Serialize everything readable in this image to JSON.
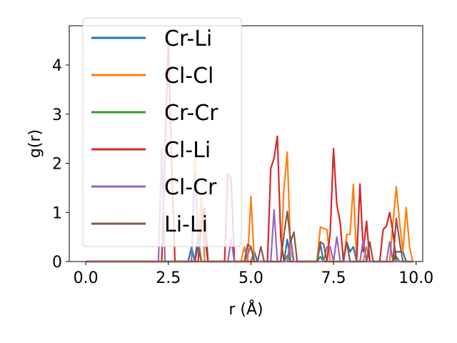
{
  "chart_data": {
    "type": "line",
    "xlabel": "r (Å)",
    "ylabel": "g(r)",
    "xlim": [
      -0.5,
      10.2
    ],
    "ylim": [
      0,
      4.8
    ],
    "xticks": [
      0.0,
      2.5,
      5.0,
      7.5,
      10.0
    ],
    "xtick_labels": [
      "0.0",
      "2.5",
      "5.0",
      "7.5",
      "10.0"
    ],
    "yticks": [
      0,
      1,
      2,
      3,
      4
    ],
    "ytick_labels": [
      "0",
      "1",
      "2",
      "3",
      "4"
    ],
    "legend_position": "top-left",
    "grid": false,
    "series": [
      {
        "name": "Cr-Li",
        "color": "#1f77b4",
        "points": [
          [
            0,
            0
          ],
          [
            3.1,
            0
          ],
          [
            3.2,
            0.3
          ],
          [
            3.3,
            0
          ],
          [
            3.5,
            1.1
          ],
          [
            3.6,
            0.5
          ],
          [
            3.7,
            0
          ],
          [
            5.0,
            0
          ],
          [
            5.1,
            0.2
          ],
          [
            5.2,
            0
          ],
          [
            6.0,
            0
          ],
          [
            6.1,
            0.45
          ],
          [
            6.2,
            0
          ],
          [
            7.0,
            0
          ],
          [
            7.1,
            0.35
          ],
          [
            7.2,
            0
          ],
          [
            7.8,
            0
          ],
          [
            7.9,
            0.4
          ],
          [
            8.0,
            0.2
          ],
          [
            8.1,
            0.3
          ],
          [
            8.2,
            0
          ],
          [
            9.3,
            0
          ],
          [
            9.4,
            0.2
          ],
          [
            9.6,
            0.2
          ],
          [
            9.7,
            0
          ],
          [
            9.9,
            0
          ]
        ]
      },
      {
        "name": "Cl-Cl",
        "color": "#ff7f0e",
        "points": [
          [
            0,
            0
          ],
          [
            3.2,
            0
          ],
          [
            3.3,
            2.1
          ],
          [
            3.4,
            0.4
          ],
          [
            3.5,
            1.3
          ],
          [
            3.6,
            0
          ],
          [
            4.7,
            0
          ],
          [
            4.8,
            0.3
          ],
          [
            4.9,
            0
          ],
          [
            5.0,
            1.33
          ],
          [
            5.1,
            0
          ],
          [
            5.9,
            0
          ],
          [
            6.0,
            1.5
          ],
          [
            6.1,
            2.23
          ],
          [
            6.2,
            0.2
          ],
          [
            6.3,
            0
          ],
          [
            7.0,
            0
          ],
          [
            7.1,
            0.7
          ],
          [
            7.3,
            0.65
          ],
          [
            7.4,
            0
          ],
          [
            7.8,
            0
          ],
          [
            7.9,
            0.55
          ],
          [
            8.0,
            0.55
          ],
          [
            8.1,
            1.57
          ],
          [
            8.2,
            0
          ],
          [
            8.4,
            0
          ],
          [
            8.5,
            0.3
          ],
          [
            8.6,
            0
          ],
          [
            9.2,
            0
          ],
          [
            9.3,
            0.8
          ],
          [
            9.4,
            1.52
          ],
          [
            9.5,
            0.8
          ],
          [
            9.6,
            0.2
          ],
          [
            9.7,
            1.1
          ],
          [
            9.8,
            0.3
          ],
          [
            9.9,
            0
          ]
        ]
      },
      {
        "name": "Cr-Cr",
        "color": "#2ca02c",
        "points": [
          [
            0,
            0
          ],
          [
            6.0,
            0
          ],
          [
            6.1,
            0.12
          ],
          [
            6.2,
            0
          ],
          [
            7.0,
            0
          ],
          [
            7.1,
            0.1
          ],
          [
            7.2,
            0
          ],
          [
            9.3,
            0
          ],
          [
            9.4,
            0.1
          ],
          [
            9.5,
            0
          ],
          [
            9.9,
            0
          ]
        ]
      },
      {
        "name": "Cl-Li",
        "color": "#d62728",
        "points": [
          [
            0,
            0
          ],
          [
            2.3,
            0
          ],
          [
            2.4,
            2.3
          ],
          [
            2.5,
            4.5
          ],
          [
            2.6,
            2.0
          ],
          [
            2.7,
            0
          ],
          [
            3.4,
            0
          ],
          [
            3.5,
            0.8
          ],
          [
            3.6,
            1.1
          ],
          [
            3.7,
            0
          ],
          [
            4.2,
            0
          ],
          [
            4.3,
            1.78
          ],
          [
            4.4,
            1.7
          ],
          [
            4.5,
            0
          ],
          [
            5.5,
            0
          ],
          [
            5.6,
            1.9
          ],
          [
            5.7,
            2.1
          ],
          [
            5.8,
            2.55
          ],
          [
            5.9,
            0.5
          ],
          [
            6.0,
            0
          ],
          [
            7.3,
            0
          ],
          [
            7.4,
            0.6
          ],
          [
            7.5,
            2.3
          ],
          [
            7.6,
            1.15
          ],
          [
            7.7,
            0.8
          ],
          [
            7.8,
            0
          ],
          [
            8.2,
            0
          ],
          [
            8.3,
            1.58
          ],
          [
            8.4,
            0.2
          ],
          [
            8.5,
            0.82
          ],
          [
            8.6,
            0
          ],
          [
            8.9,
            0
          ],
          [
            9.0,
            0.65
          ],
          [
            9.1,
            0.72
          ],
          [
            9.2,
            1.0
          ],
          [
            9.3,
            0.6
          ],
          [
            9.4,
            0
          ],
          [
            9.9,
            0
          ]
        ]
      },
      {
        "name": "Cl-Cr",
        "color": "#9467bd",
        "points": [
          [
            0,
            0
          ],
          [
            2.2,
            0
          ],
          [
            2.3,
            2.3
          ],
          [
            2.4,
            0
          ],
          [
            3.2,
            0
          ],
          [
            3.3,
            1.8
          ],
          [
            3.4,
            0.5
          ],
          [
            3.5,
            0
          ],
          [
            4.3,
            0
          ],
          [
            4.4,
            0.45
          ],
          [
            4.5,
            0
          ],
          [
            4.8,
            0
          ],
          [
            5.0,
            0.3
          ],
          [
            5.1,
            0
          ],
          [
            5.6,
            0
          ],
          [
            5.7,
            1.05
          ],
          [
            5.8,
            0
          ],
          [
            6.1,
            0
          ],
          [
            6.2,
            0.5
          ],
          [
            6.3,
            0
          ],
          [
            7.2,
            0
          ],
          [
            7.3,
            0.3
          ],
          [
            7.4,
            0.3
          ],
          [
            7.5,
            0
          ],
          [
            7.6,
            0.5
          ],
          [
            7.7,
            0
          ],
          [
            8.3,
            0
          ],
          [
            8.4,
            0.45
          ],
          [
            8.5,
            0
          ],
          [
            9.1,
            0
          ],
          [
            9.2,
            0.4
          ],
          [
            9.3,
            0
          ],
          [
            9.9,
            0
          ]
        ]
      },
      {
        "name": "Li-Li",
        "color": "#8c564b",
        "points": [
          [
            0,
            0
          ],
          [
            3.3,
            0
          ],
          [
            3.4,
            0.3
          ],
          [
            3.5,
            0
          ],
          [
            4.8,
            0
          ],
          [
            4.9,
            0.35
          ],
          [
            5.0,
            0.3
          ],
          [
            5.1,
            0
          ],
          [
            5.2,
            0
          ],
          [
            5.3,
            0.3
          ],
          [
            5.4,
            0
          ],
          [
            5.9,
            0
          ],
          [
            6.0,
            0.55
          ],
          [
            6.1,
            1.02
          ],
          [
            6.2,
            0.4
          ],
          [
            6.3,
            0.6
          ],
          [
            6.4,
            0
          ],
          [
            7.0,
            0
          ],
          [
            7.1,
            0.4
          ],
          [
            7.2,
            0.35
          ],
          [
            7.3,
            0
          ],
          [
            7.8,
            0
          ],
          [
            7.9,
            0.4
          ],
          [
            8.0,
            0
          ],
          [
            8.5,
            0
          ],
          [
            8.6,
            0.4
          ],
          [
            8.7,
            0
          ],
          [
            9.3,
            0
          ],
          [
            9.4,
            0.88
          ],
          [
            9.5,
            0.4
          ],
          [
            9.6,
            0
          ],
          [
            9.9,
            0
          ]
        ]
      }
    ]
  }
}
